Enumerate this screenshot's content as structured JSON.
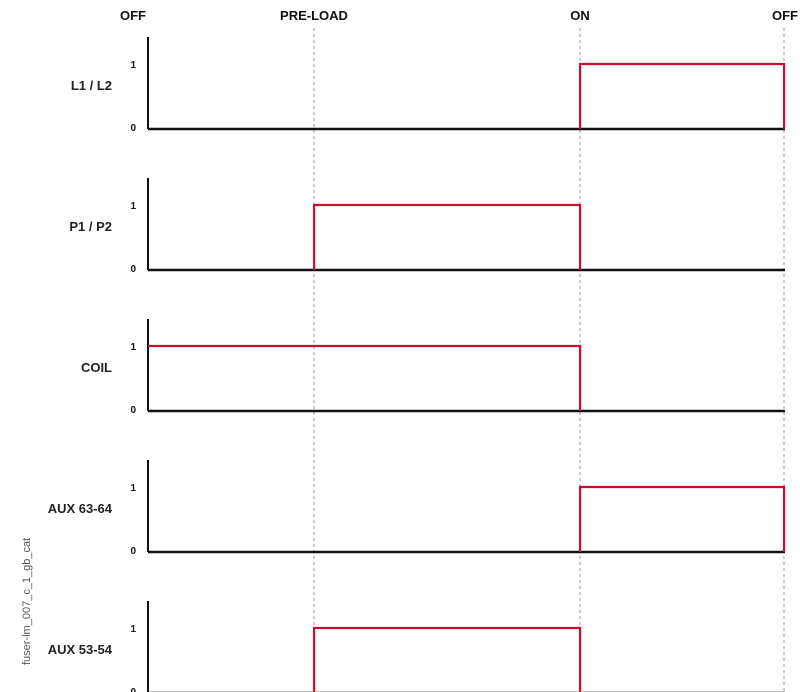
{
  "states": [
    "OFF",
    "PRE-LOAD",
    "ON",
    "OFF"
  ],
  "rows": [
    {
      "label": "L1 / L2",
      "high_from": 2,
      "high_to": 3
    },
    {
      "label": "P1 / P2",
      "high_from": 1,
      "high_to": 2
    },
    {
      "label": "COIL",
      "high_from": 0,
      "high_to": 2
    },
    {
      "label": "AUX 63-64",
      "high_from": 2,
      "high_to": 3
    },
    {
      "label": "AUX 53-54",
      "high_from": 1,
      "high_to": 2
    }
  ],
  "levels": {
    "high": "1",
    "low": "0"
  },
  "side_code": "fuser-lm_007_c_1_gb_cat",
  "colors": {
    "signal": "#c8102e",
    "axis": "#111111",
    "guide": "#9a9a9a"
  }
}
